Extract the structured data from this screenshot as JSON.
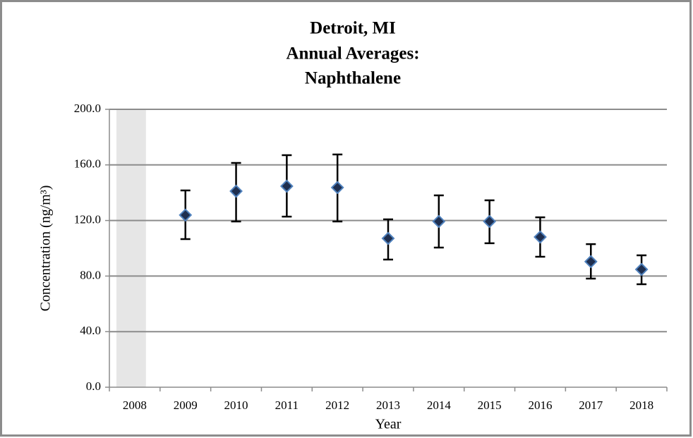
{
  "chart_data": {
    "type": "errorbar",
    "title": [
      "Detroit, MI",
      "Annual Averages:",
      "Naphthalene"
    ],
    "x_label": "Year",
    "y_label": "Concentration (ng/m³)",
    "categories": [
      "2008",
      "2009",
      "2010",
      "2011",
      "2012",
      "2013",
      "2014",
      "2015",
      "2016",
      "2017",
      "2018"
    ],
    "series": [
      {
        "color": "#1f2f4f",
        "values": [
          null,
          123.9,
          141.1,
          144.7,
          143.7,
          107.1,
          119.3,
          119.3,
          108.1,
          90.4,
          84.8
        ],
        "lower": [
          null,
          106.6,
          119.3,
          122.8,
          119.3,
          91.9,
          100.5,
          103.6,
          93.9,
          78.2,
          74.1
        ],
        "upper": [
          null,
          141.6,
          161.4,
          167.0,
          167.5,
          120.8,
          138.1,
          134.5,
          122.3,
          103.0,
          94.9
        ]
      }
    ],
    "ylim": [
      0,
      200
    ],
    "yticks": [
      {
        "value": 0,
        "label": "0.0"
      },
      {
        "value": 40,
        "label": "40.0"
      },
      {
        "value": 80,
        "label": "80.0"
      },
      {
        "value": 120,
        "label": "120.0"
      },
      {
        "value": 160,
        "label": "160.0"
      },
      {
        "value": 200,
        "label": "200.0"
      }
    ],
    "grid": true
  }
}
